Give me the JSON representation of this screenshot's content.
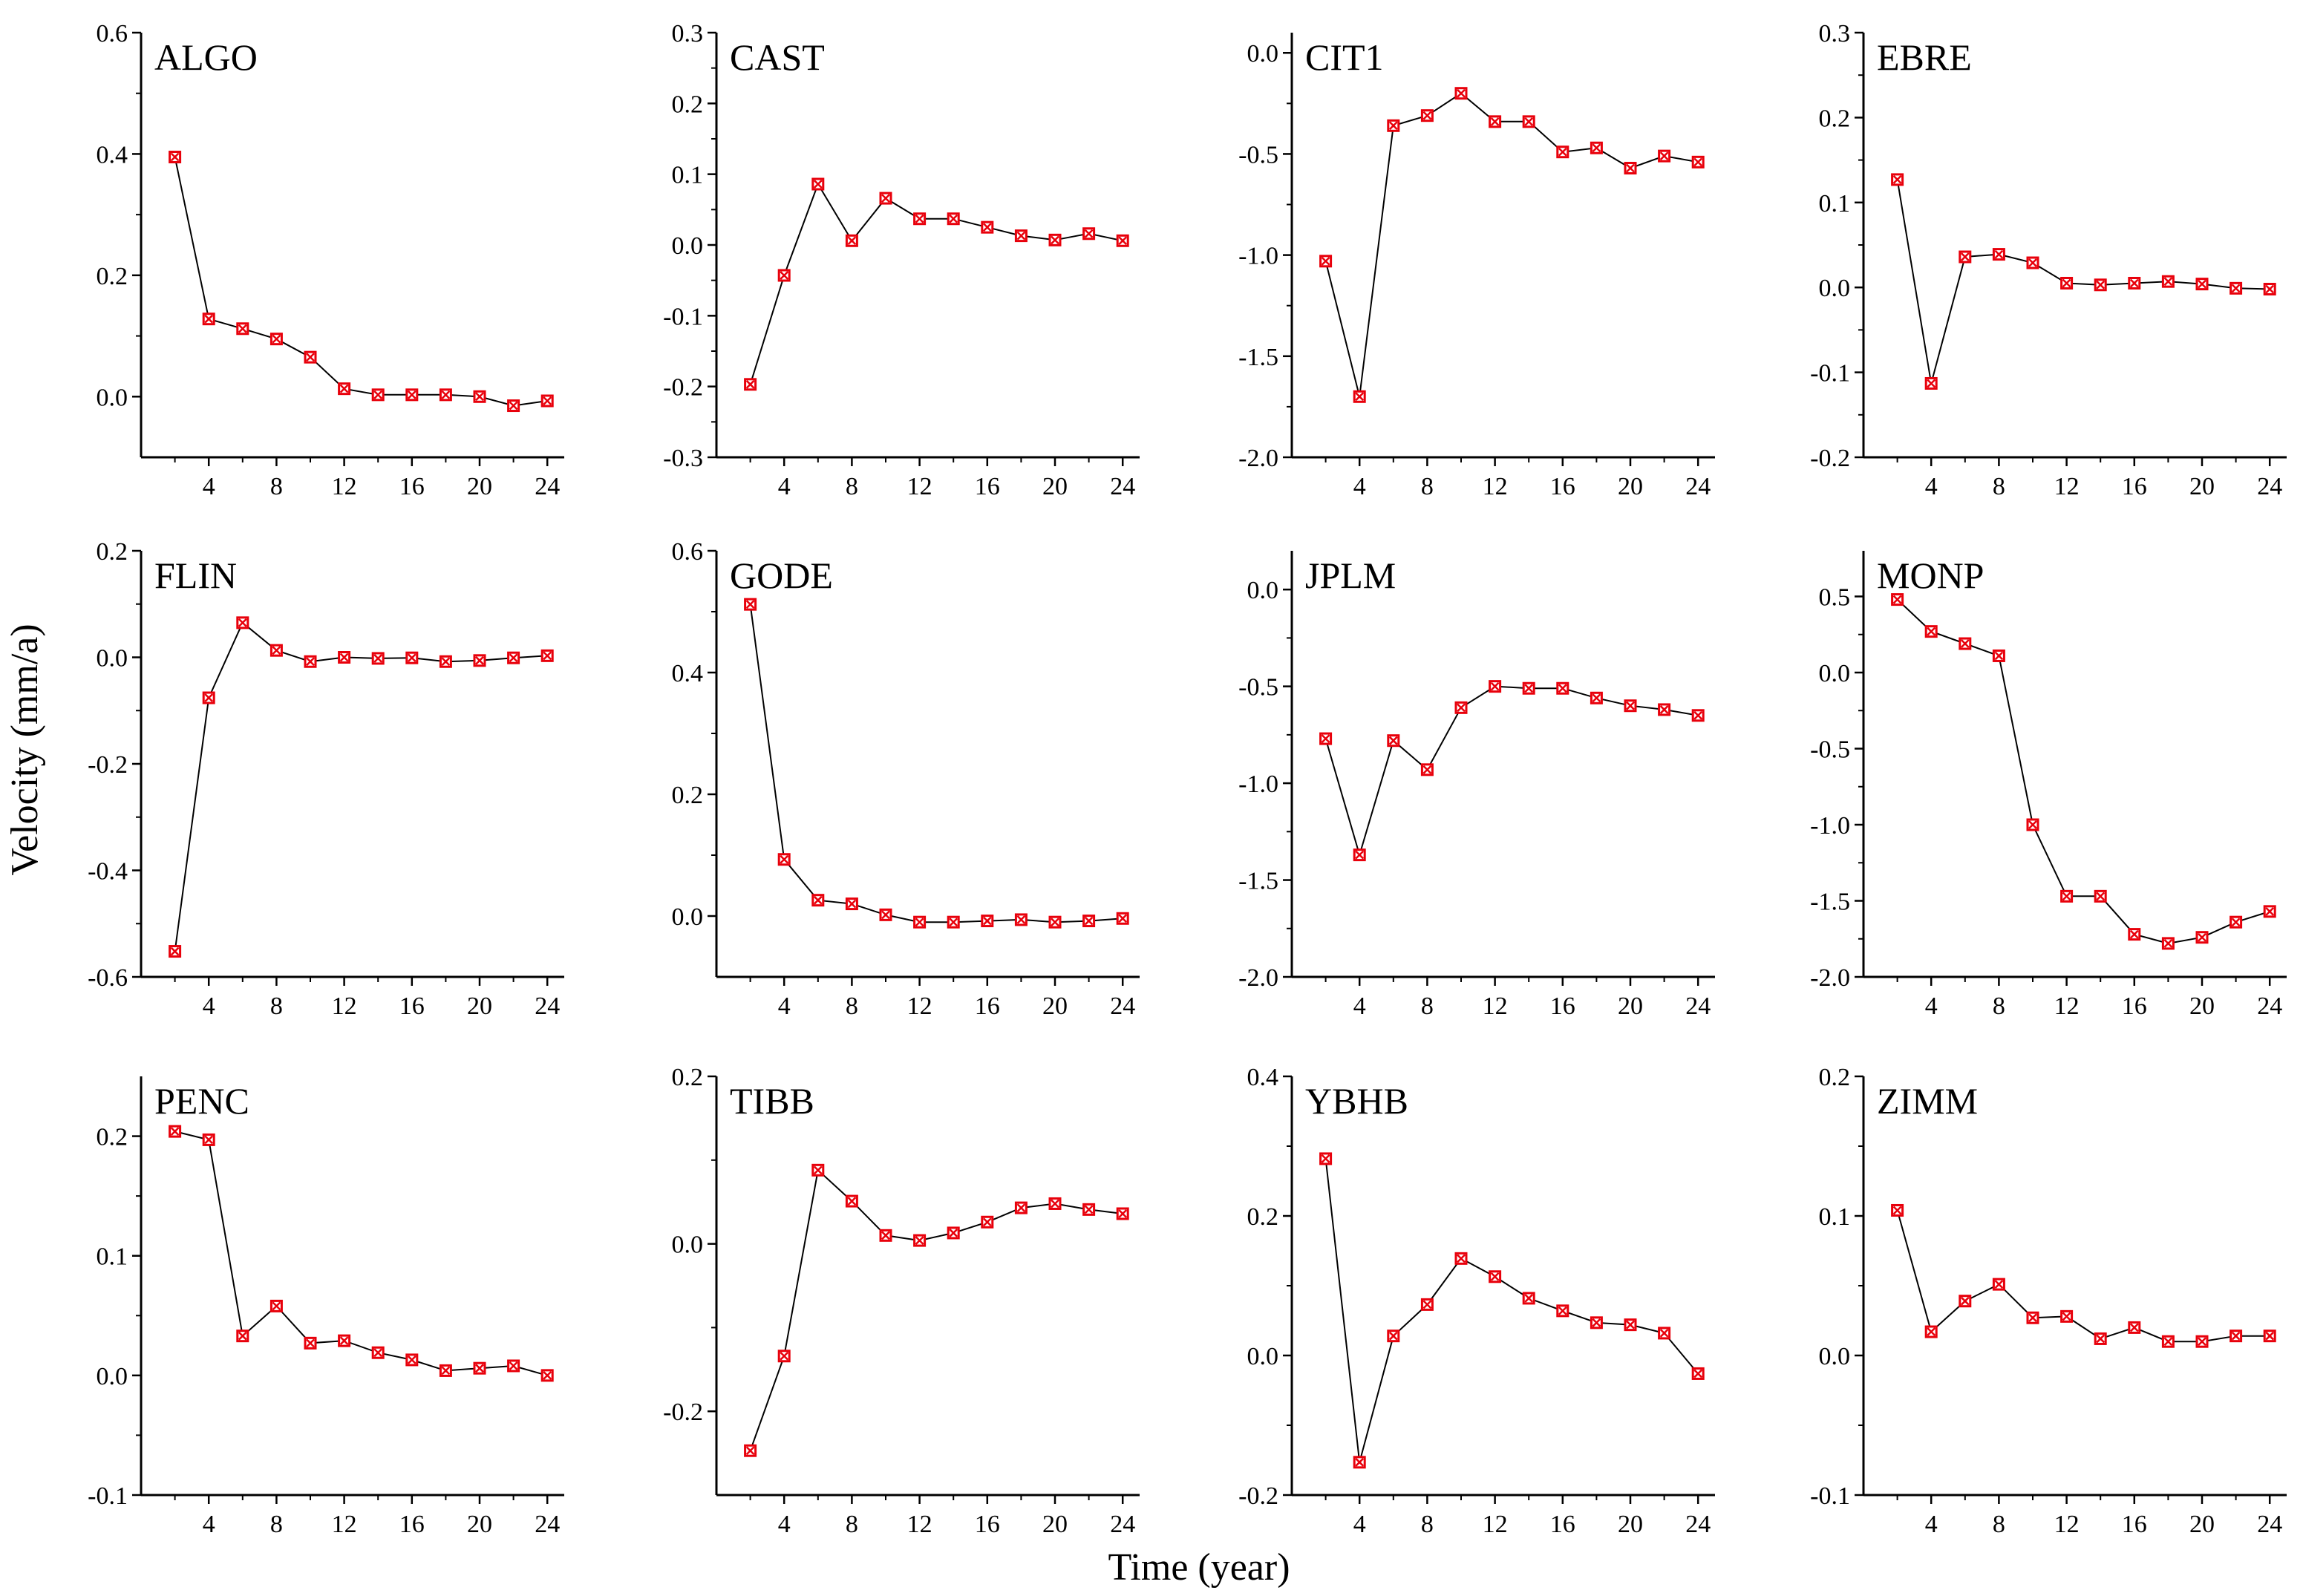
{
  "figure": {
    "ylabel": "Velocity (mm/a)",
    "xlabel": "Time  (year)",
    "marker_color": "#e8000b",
    "line_color": "#000000"
  },
  "chart_data": [
    {
      "type": "line",
      "title": "ALGO",
      "xlim": [
        0,
        25
      ],
      "ylim": [
        -0.1,
        0.6
      ],
      "yticks": [
        "0.0",
        "0.2",
        "0.4",
        "0.6"
      ],
      "ytick_values": [
        0.0,
        0.2,
        0.4,
        0.6
      ],
      "xticks": [
        4,
        8,
        12,
        16,
        20,
        24
      ],
      "x": [
        2,
        4,
        6,
        8,
        10,
        12,
        14,
        16,
        18,
        20,
        22,
        24
      ],
      "values": [
        0.395,
        0.128,
        0.112,
        0.095,
        0.065,
        0.013,
        0.003,
        0.003,
        0.003,
        0.0,
        -0.015,
        -0.007
      ]
    },
    {
      "type": "line",
      "title": "CAST",
      "xlim": [
        0,
        25
      ],
      "ylim": [
        -0.3,
        0.3
      ],
      "yticks": [
        "-0.3",
        "-0.2",
        "-0.1",
        "0.0",
        "0.1",
        "0.2",
        "0.3"
      ],
      "ytick_values": [
        -0.3,
        -0.2,
        -0.1,
        0.0,
        0.1,
        0.2,
        0.3
      ],
      "xticks": [
        4,
        8,
        12,
        16,
        20,
        24
      ],
      "x": [
        2,
        4,
        6,
        8,
        10,
        12,
        14,
        16,
        18,
        20,
        22,
        24
      ],
      "values": [
        -0.197,
        -0.043,
        0.086,
        0.006,
        0.066,
        0.037,
        0.037,
        0.025,
        0.013,
        0.007,
        0.016,
        0.006
      ]
    },
    {
      "type": "line",
      "title": "CIT1",
      "xlim": [
        0,
        25
      ],
      "ylim": [
        -2.0,
        0.1
      ],
      "yticks": [
        "-2.0",
        "-1.5",
        "-1.0",
        "-0.5",
        "0.0"
      ],
      "ytick_values": [
        -2.0,
        -1.5,
        -1.0,
        -0.5,
        0.0
      ],
      "xticks": [
        4,
        8,
        12,
        16,
        20,
        24
      ],
      "x": [
        2,
        4,
        6,
        8,
        10,
        12,
        14,
        16,
        18,
        20,
        22,
        24
      ],
      "values": [
        -1.03,
        -1.7,
        -0.36,
        -0.31,
        -0.2,
        -0.34,
        -0.34,
        -0.49,
        -0.47,
        -0.57,
        -0.51,
        -0.54
      ]
    },
    {
      "type": "line",
      "title": "EBRE",
      "xlim": [
        0,
        25
      ],
      "ylim": [
        -0.2,
        0.3
      ],
      "yticks": [
        "-0.2",
        "-0.1",
        "0.0",
        "0.1",
        "0.2",
        "0.3"
      ],
      "ytick_values": [
        -0.2,
        -0.1,
        0.0,
        0.1,
        0.2,
        0.3
      ],
      "xticks": [
        4,
        8,
        12,
        16,
        20,
        24
      ],
      "x": [
        2,
        4,
        6,
        8,
        10,
        12,
        14,
        16,
        18,
        20,
        22,
        24
      ],
      "values": [
        0.127,
        -0.113,
        0.036,
        0.039,
        0.029,
        0.005,
        0.003,
        0.005,
        0.007,
        0.004,
        -0.001,
        -0.002
      ]
    },
    {
      "type": "line",
      "title": "FLIN",
      "xlim": [
        0,
        25
      ],
      "ylim": [
        -0.6,
        0.2
      ],
      "yticks": [
        "-0.6",
        "-0.4",
        "-0.2",
        "0.0",
        "0.2"
      ],
      "ytick_values": [
        -0.6,
        -0.4,
        -0.2,
        0.0,
        0.2
      ],
      "xticks": [
        4,
        8,
        12,
        16,
        20,
        24
      ],
      "x": [
        2,
        4,
        6,
        8,
        10,
        12,
        14,
        16,
        18,
        20,
        22,
        24
      ],
      "values": [
        -0.552,
        -0.076,
        0.065,
        0.013,
        -0.008,
        0.0,
        -0.002,
        -0.001,
        -0.008,
        -0.006,
        -0.001,
        0.003
      ]
    },
    {
      "type": "line",
      "title": "GODE",
      "xlim": [
        0,
        25
      ],
      "ylim": [
        -0.1,
        0.6
      ],
      "yticks": [
        "0.0",
        "0.2",
        "0.4",
        "0.6"
      ],
      "ytick_values": [
        0.0,
        0.2,
        0.4,
        0.6
      ],
      "xticks": [
        4,
        8,
        12,
        16,
        20,
        24
      ],
      "x": [
        2,
        4,
        6,
        8,
        10,
        12,
        14,
        16,
        18,
        20,
        22,
        24
      ],
      "values": [
        0.512,
        0.093,
        0.026,
        0.02,
        0.002,
        -0.01,
        -0.01,
        -0.008,
        -0.006,
        -0.01,
        -0.008,
        -0.004
      ]
    },
    {
      "type": "line",
      "title": "JPLM",
      "xlim": [
        0,
        25
      ],
      "ylim": [
        -2.0,
        0.2
      ],
      "yticks": [
        "-2.0",
        "-1.5",
        "-1.0",
        "-0.5",
        "0.0"
      ],
      "ytick_values": [
        -2.0,
        -1.5,
        -1.0,
        -0.5,
        0.0
      ],
      "xticks": [
        4,
        8,
        12,
        16,
        20,
        24
      ],
      "x": [
        2,
        4,
        6,
        8,
        10,
        12,
        14,
        16,
        18,
        20,
        22,
        24
      ],
      "values": [
        -0.77,
        -1.37,
        -0.78,
        -0.93,
        -0.61,
        -0.5,
        -0.51,
        -0.51,
        -0.56,
        -0.6,
        -0.62,
        -0.65
      ]
    },
    {
      "type": "line",
      "title": "MONP",
      "xlim": [
        0,
        25
      ],
      "ylim": [
        -2.0,
        0.8
      ],
      "yticks": [
        "-2.0",
        "-1.5",
        "-1.0",
        "-0.5",
        "0.0",
        "0.5"
      ],
      "ytick_values": [
        -2.0,
        -1.5,
        -1.0,
        -0.5,
        0.0,
        0.5
      ],
      "xticks": [
        4,
        8,
        12,
        16,
        20,
        24
      ],
      "x": [
        2,
        4,
        6,
        8,
        10,
        12,
        14,
        16,
        18,
        20,
        22,
        24
      ],
      "values": [
        0.48,
        0.27,
        0.19,
        0.11,
        -1.0,
        -1.47,
        -1.47,
        -1.72,
        -1.78,
        -1.74,
        -1.64,
        -1.57
      ]
    },
    {
      "type": "line",
      "title": "PENC",
      "xlim": [
        0,
        25
      ],
      "ylim": [
        -0.1,
        0.25
      ],
      "yticks": [
        "-0.1",
        "0.0",
        "0.1",
        "0.2"
      ],
      "ytick_values": [
        -0.1,
        0.0,
        0.1,
        0.2
      ],
      "xticks": [
        4,
        8,
        12,
        16,
        20,
        24
      ],
      "x": [
        2,
        4,
        6,
        8,
        10,
        12,
        14,
        16,
        18,
        20,
        22,
        24
      ],
      "values": [
        0.204,
        0.197,
        0.033,
        0.058,
        0.027,
        0.029,
        0.019,
        0.013,
        0.004,
        0.006,
        0.008,
        0.0
      ]
    },
    {
      "type": "line",
      "title": "TIBB",
      "xlim": [
        0,
        25
      ],
      "ylim": [
        -0.3,
        0.2
      ],
      "yticks": [
        "-0.2",
        "0.0",
        "0.2"
      ],
      "ytick_values": [
        -0.2,
        0.0,
        0.2
      ],
      "xticks": [
        4,
        8,
        12,
        16,
        20,
        24
      ],
      "x": [
        2,
        4,
        6,
        8,
        10,
        12,
        14,
        16,
        18,
        20,
        22,
        24
      ],
      "values": [
        -0.247,
        -0.134,
        0.088,
        0.051,
        0.01,
        0.004,
        0.013,
        0.026,
        0.043,
        0.048,
        0.041,
        0.036
      ]
    },
    {
      "type": "line",
      "title": "YBHB",
      "xlim": [
        0,
        25
      ],
      "ylim": [
        -0.2,
        0.4
      ],
      "yticks": [
        "-0.2",
        "0.0",
        "0.2",
        "0.4"
      ],
      "ytick_values": [
        -0.2,
        0.0,
        0.2,
        0.4
      ],
      "xticks": [
        4,
        8,
        12,
        16,
        20,
        24
      ],
      "x": [
        2,
        4,
        6,
        8,
        10,
        12,
        14,
        16,
        18,
        20,
        22,
        24
      ],
      "values": [
        0.282,
        -0.153,
        0.028,
        0.073,
        0.139,
        0.113,
        0.082,
        0.064,
        0.047,
        0.044,
        0.032,
        -0.026
      ]
    },
    {
      "type": "line",
      "title": "ZIMM",
      "xlim": [
        0,
        25
      ],
      "ylim": [
        -0.1,
        0.2
      ],
      "yticks": [
        "-0.1",
        "0.0",
        "0.1",
        "0.2"
      ],
      "ytick_values": [
        -0.1,
        0.0,
        0.1,
        0.2
      ],
      "xticks": [
        4,
        8,
        12,
        16,
        20,
        24
      ],
      "x": [
        2,
        4,
        6,
        8,
        10,
        12,
        14,
        16,
        18,
        20,
        22,
        24
      ],
      "values": [
        0.104,
        0.017,
        0.039,
        0.051,
        0.027,
        0.028,
        0.012,
        0.02,
        0.01,
        0.01,
        0.014,
        0.014
      ]
    }
  ]
}
